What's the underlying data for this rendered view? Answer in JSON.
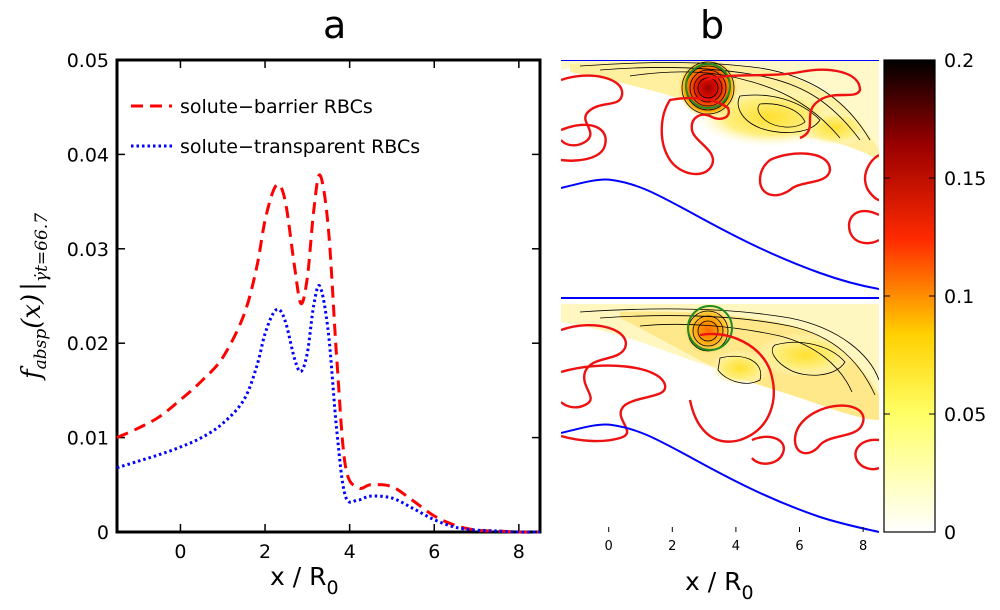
{
  "panels": {
    "a_label": "a",
    "b_label": "b"
  },
  "chart_data": [
    {
      "panel": "a",
      "type": "line",
      "xlabel": "x / R",
      "xlabel_subscript": "0",
      "ylabel": "f_absp(x)|_γt=66.7",
      "xlim": [
        -1.5,
        8.5
      ],
      "ylim": [
        0,
        0.05
      ],
      "xticks": [
        "0",
        "2",
        "4",
        "6",
        "8"
      ],
      "yticks": [
        "0",
        "0.01",
        "0.02",
        "0.03",
        "0.04",
        "0.05"
      ],
      "legend_position": "top-left",
      "series": [
        {
          "name": "solute−barrier RBCs",
          "color": "#ff0000",
          "dash": "dashed",
          "x": [
            -1.5,
            -1.0,
            -0.5,
            0.0,
            0.5,
            1.0,
            1.5,
            1.8,
            2.0,
            2.2,
            2.35,
            2.5,
            2.7,
            2.85,
            3.0,
            3.15,
            3.3,
            3.5,
            3.7,
            3.9,
            4.2,
            4.5,
            5.0,
            5.5,
            6.0,
            6.5,
            7.0,
            7.5,
            8.0,
            8.5
          ],
          "y": [
            0.01,
            0.011,
            0.0122,
            0.014,
            0.016,
            0.0185,
            0.023,
            0.028,
            0.033,
            0.0362,
            0.0367,
            0.0345,
            0.028,
            0.0242,
            0.027,
            0.034,
            0.0378,
            0.032,
            0.018,
            0.007,
            0.0047,
            0.005,
            0.0048,
            0.0033,
            0.0017,
            0.0007,
            0.0002,
            0.0001,
            0.0,
            0.0
          ]
        },
        {
          "name": "solute−transparent RBCs",
          "color": "#0000ff",
          "dash": "dotted",
          "x": [
            -1.5,
            -1.0,
            -0.5,
            0.0,
            0.5,
            1.0,
            1.5,
            1.8,
            2.0,
            2.2,
            2.35,
            2.5,
            2.7,
            2.85,
            3.0,
            3.15,
            3.3,
            3.5,
            3.7,
            3.9,
            4.2,
            4.5,
            5.0,
            5.5,
            6.0,
            6.5,
            7.0,
            7.5,
            8.0,
            8.5
          ],
          "y": [
            0.0068,
            0.0075,
            0.0082,
            0.009,
            0.01,
            0.0115,
            0.014,
            0.0175,
            0.021,
            0.0232,
            0.0235,
            0.022,
            0.0183,
            0.017,
            0.019,
            0.024,
            0.026,
            0.021,
            0.0105,
            0.0038,
            0.0034,
            0.0038,
            0.0036,
            0.0025,
            0.0013,
            0.0005,
            0.0002,
            0.0001,
            0.0,
            0.0
          ]
        }
      ]
    },
    {
      "panel": "b",
      "type": "heatmap",
      "xlabel": "x / R",
      "xlabel_subscript": "0",
      "xlim": [
        -1.5,
        8.5
      ],
      "xticks": [
        "0",
        "2",
        "4",
        "6",
        "8"
      ],
      "colorbar": {
        "range": [
          0,
          0.2
        ],
        "ticks": [
          "0",
          "0.05",
          "0.1",
          "0.15",
          "0.2"
        ],
        "colormap": "hot (white-yellow-red-black)"
      },
      "subplots": [
        {
          "position": "top",
          "hotspot_x": 3.3,
          "peak_value": 0.16
        },
        {
          "position": "bottom",
          "hotspot_x": 3.3,
          "peak_value": 0.09
        }
      ],
      "colors": {
        "walls": "#0000ff",
        "rbc_outline": "#ff0000",
        "particle_outline": "#228b22"
      }
    }
  ]
}
